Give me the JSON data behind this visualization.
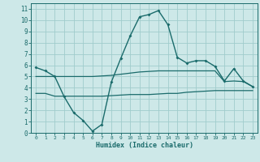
{
  "xlabel": "Humidex (Indice chaleur)",
  "background_color": "#cde8e8",
  "grid_color": "#a0cccc",
  "line_color": "#1a6b6b",
  "xlim": [
    -0.5,
    23.5
  ],
  "ylim": [
    0,
    11.5
  ],
  "xticks": [
    0,
    1,
    2,
    3,
    4,
    5,
    6,
    7,
    8,
    9,
    10,
    11,
    12,
    13,
    14,
    15,
    16,
    17,
    18,
    19,
    20,
    21,
    22,
    23
  ],
  "yticks": [
    0,
    1,
    2,
    3,
    4,
    5,
    6,
    7,
    8,
    9,
    10,
    11
  ],
  "line1_x": [
    0,
    1,
    2,
    3,
    4,
    5,
    6,
    7,
    8,
    9,
    10,
    11,
    12,
    13,
    14,
    15,
    16,
    17,
    18,
    19,
    20,
    21,
    22,
    23
  ],
  "line1_y": [
    5.8,
    5.5,
    5.0,
    3.2,
    1.8,
    1.1,
    0.15,
    0.75,
    4.5,
    6.6,
    8.6,
    10.3,
    10.5,
    10.85,
    9.6,
    6.7,
    6.2,
    6.4,
    6.4,
    5.9,
    4.6,
    5.7,
    4.6,
    4.1
  ],
  "line2_x": [
    0,
    1,
    2,
    3,
    4,
    5,
    6,
    7,
    8,
    9,
    10,
    11,
    12,
    13,
    14,
    15,
    16,
    17,
    18,
    19,
    20,
    21,
    22,
    23
  ],
  "line2_y": [
    5.0,
    5.0,
    5.0,
    5.0,
    5.0,
    5.0,
    5.0,
    5.05,
    5.1,
    5.2,
    5.3,
    5.4,
    5.45,
    5.5,
    5.5,
    5.5,
    5.5,
    5.5,
    5.5,
    5.5,
    4.55,
    4.6,
    4.55,
    4.1
  ],
  "line3_x": [
    0,
    1,
    2,
    3,
    4,
    5,
    6,
    7,
    8,
    9,
    10,
    11,
    12,
    13,
    14,
    15,
    16,
    17,
    18,
    19,
    20,
    21,
    22,
    23
  ],
  "line3_y": [
    3.5,
    3.5,
    3.25,
    3.25,
    3.25,
    3.25,
    3.25,
    3.25,
    3.3,
    3.35,
    3.4,
    3.4,
    3.4,
    3.45,
    3.5,
    3.5,
    3.6,
    3.65,
    3.7,
    3.75,
    3.75,
    3.75,
    3.75,
    3.75
  ]
}
